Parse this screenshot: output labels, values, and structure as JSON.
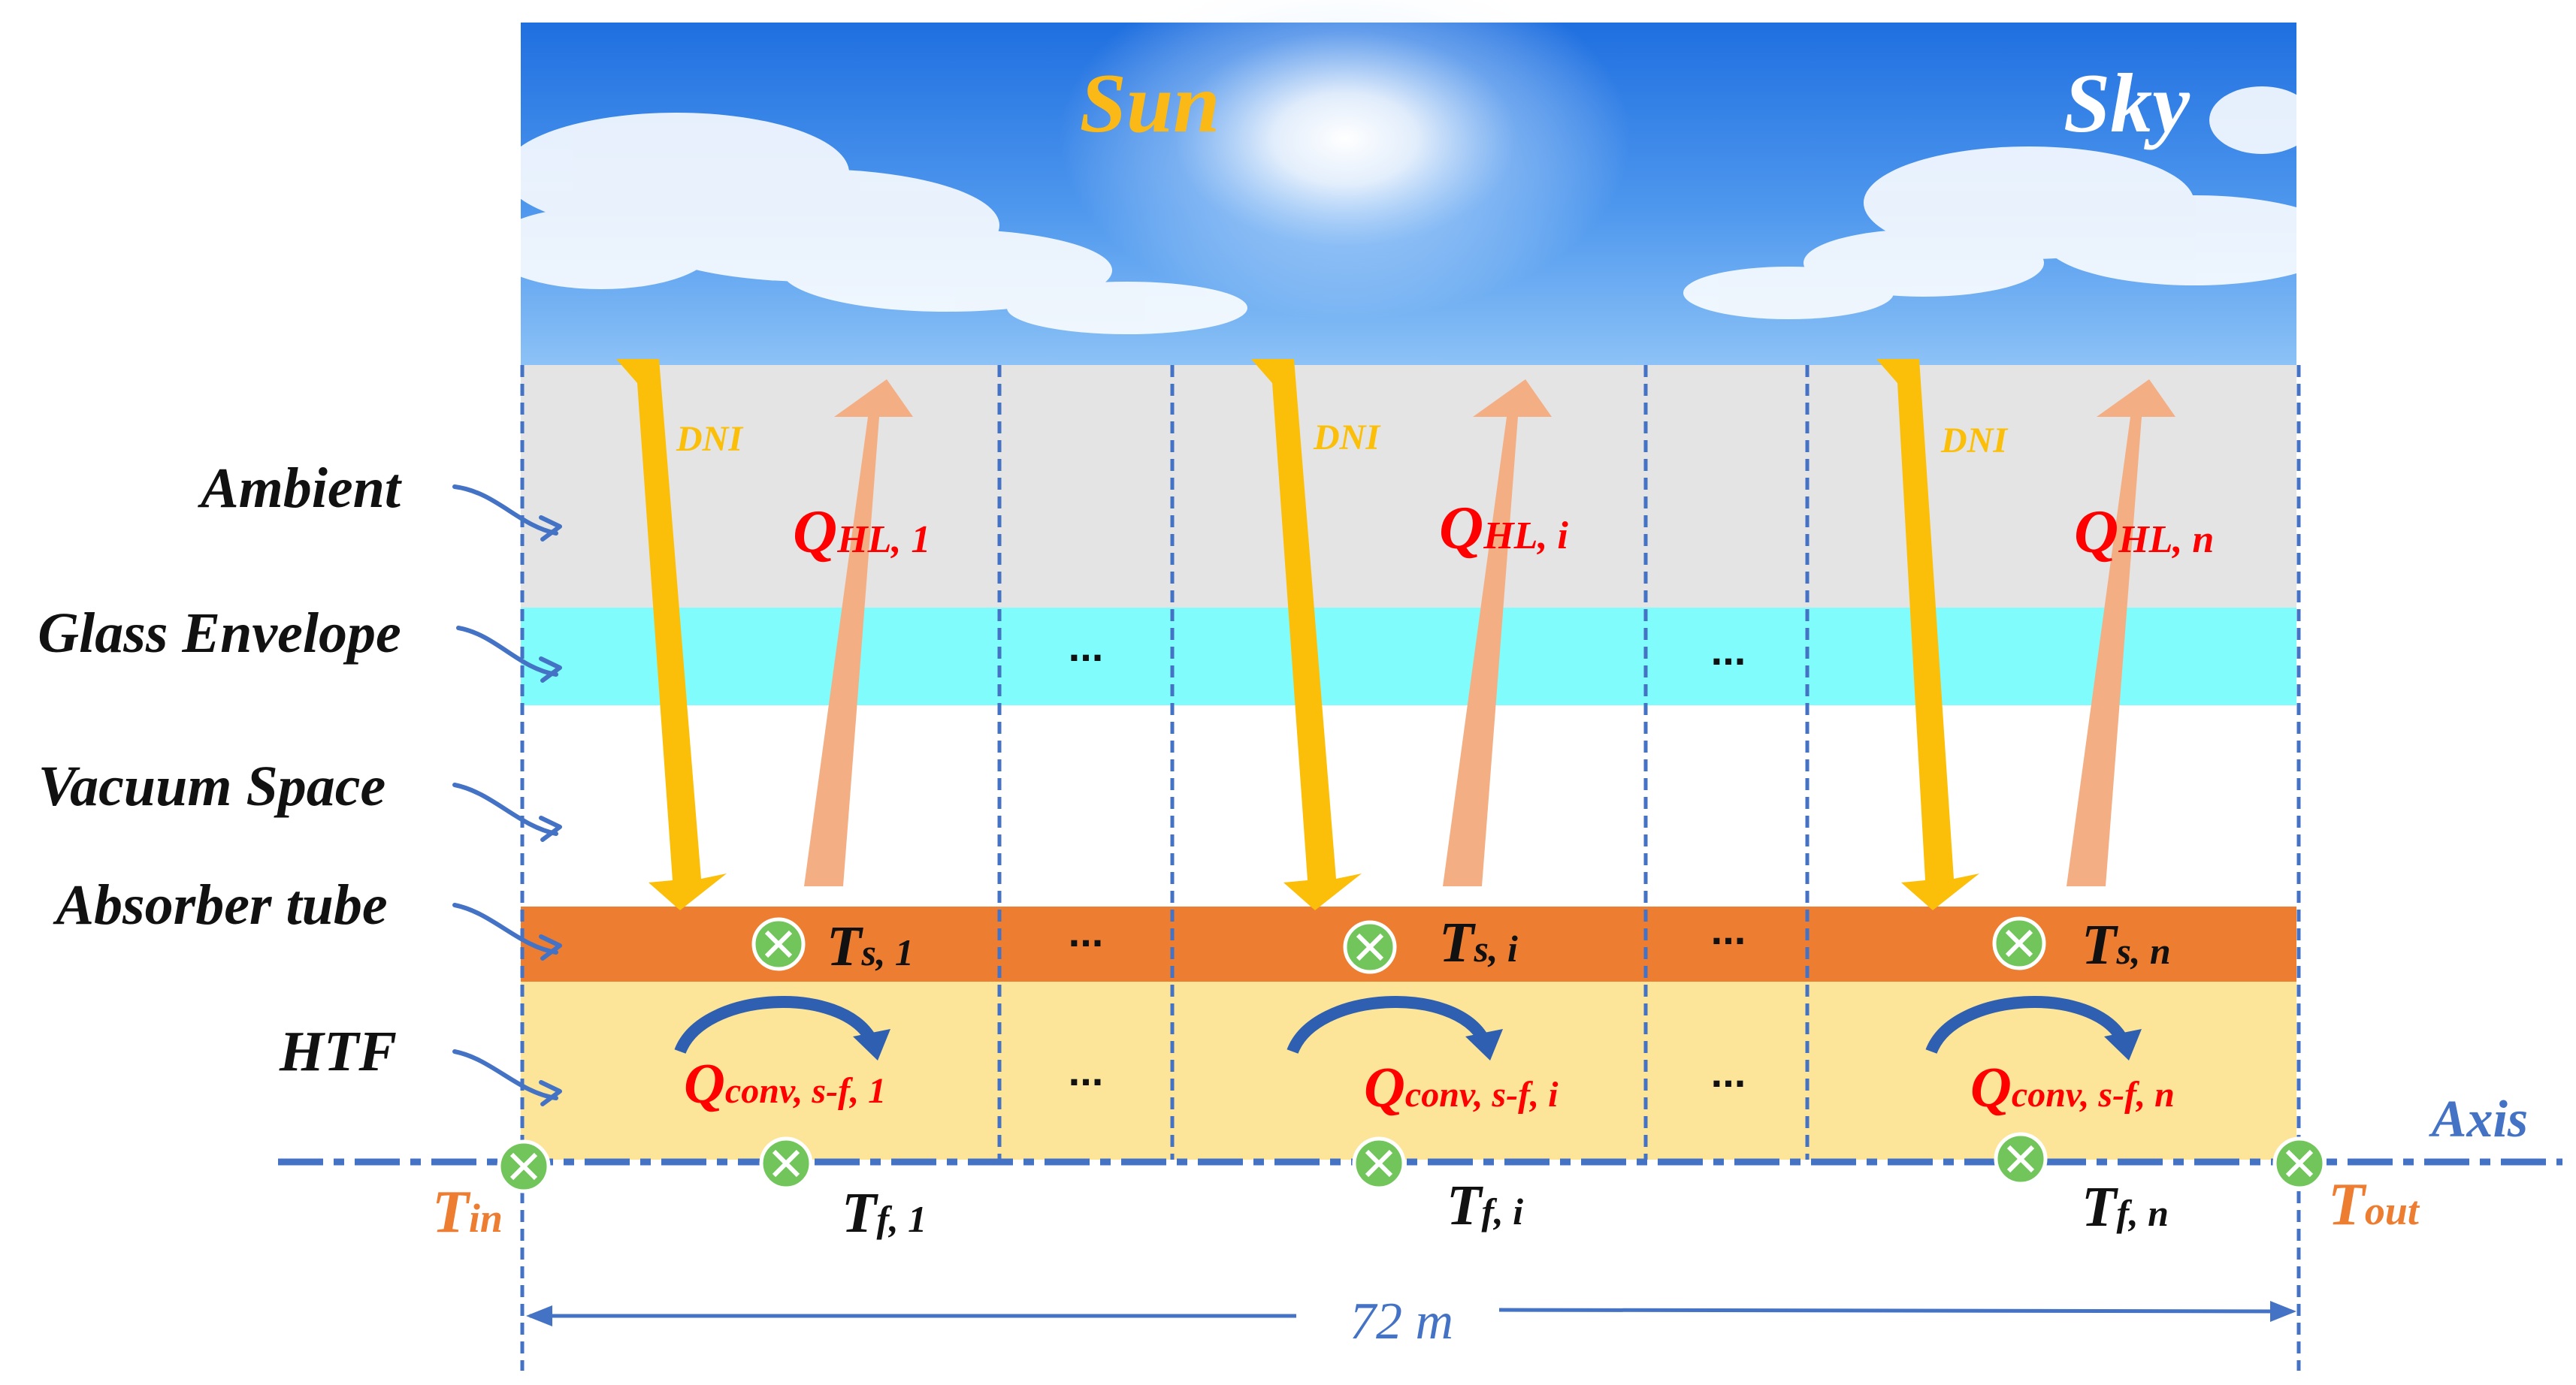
{
  "sky": {
    "sun_label": "Sun",
    "sky_label": "Sky"
  },
  "layers": [
    {
      "label": "Ambient",
      "color": "#e4e4e4"
    },
    {
      "label": "Glass Envelope",
      "color": "#80fcfc"
    },
    {
      "label": "Vacuum Space",
      "color": "#ffffff"
    },
    {
      "label": "Absorber tube",
      "color": "#ed7d31"
    },
    {
      "label": "HTF",
      "color": "#fce598"
    }
  ],
  "segments": [
    {
      "dni": "DNI",
      "q_hl": "Q",
      "q_hl_sub": "HL, 1",
      "t_s": "T",
      "t_s_sub": "s, 1",
      "q_conv": "Q",
      "q_conv_sub": "conv, s-f, 1",
      "t_f": "T",
      "t_f_sub": "f, 1"
    },
    {
      "dni": "DNI",
      "q_hl": "Q",
      "q_hl_sub": "HL, i",
      "t_s": "T",
      "t_s_sub": "s, i",
      "q_conv": "Q",
      "q_conv_sub": "conv, s-f, i",
      "t_f": "T",
      "t_f_sub": "f, i"
    },
    {
      "dni": "DNI",
      "q_hl": "Q",
      "q_hl_sub": "HL, n",
      "t_s": "T",
      "t_s_sub": "s, n",
      "q_conv": "Q",
      "q_conv_sub": "conv, s-f, n",
      "t_f": "T",
      "t_f_sub": "f, n"
    }
  ],
  "ellipsis": "...",
  "inlet": {
    "main": "T",
    "sub": "in"
  },
  "outlet": {
    "main": "T",
    "sub": "out"
  },
  "axis_label": "Axis",
  "length_label": "72 m",
  "colors": {
    "dni_arrow": "#fbbf09",
    "heat_loss_arrow": "#f4ae84",
    "conv_arrow": "#2e5fb0",
    "red_text": "#ff0000",
    "orange_text": "#ed7d31",
    "blue_line": "#4472c4",
    "sensor_fill": "#71c55a"
  }
}
